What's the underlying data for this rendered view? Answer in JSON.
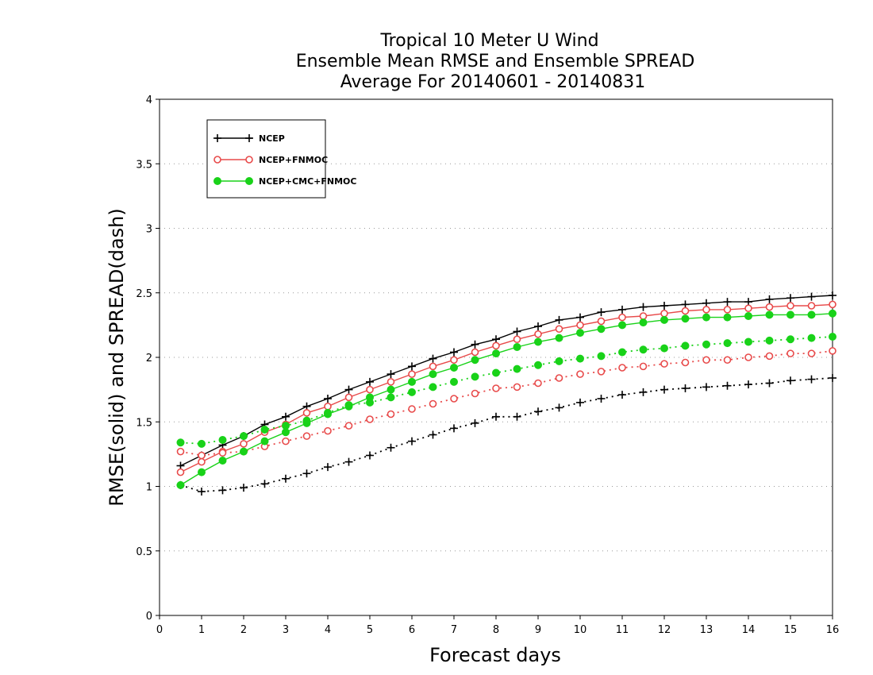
{
  "chart_data": {
    "type": "line",
    "title": [
      "Tropical 10 Meter U Wind",
      "Ensemble Mean RMSE and Ensemble SPREAD",
      "Average For 20140601 - 20140831"
    ],
    "xlabel": "Forecast days",
    "ylabel": "RMSE(solid) and SPREAD(dash)",
    "xlim": [
      0,
      16
    ],
    "ylim": [
      0,
      4
    ],
    "xticks": [
      "0",
      "1",
      "2",
      "3",
      "4",
      "5",
      "6",
      "7",
      "8",
      "9",
      "10",
      "11",
      "12",
      "13",
      "14",
      "15",
      "16"
    ],
    "yticks": [
      "0",
      "0.5",
      "1",
      "1.5",
      "2",
      "2.5",
      "3",
      "3.5",
      "4"
    ],
    "grid": "horizontal dotted",
    "legend_position": "top-left",
    "x": [
      0.5,
      1,
      1.5,
      2,
      2.5,
      3,
      3.5,
      4,
      4.5,
      5,
      5.5,
      6,
      6.5,
      7,
      7.5,
      8,
      8.5,
      9,
      9.5,
      10,
      10.5,
      11,
      11.5,
      12,
      12.5,
      13,
      13.5,
      14,
      14.5,
      15,
      15.5,
      16
    ],
    "series": [
      {
        "name": "NCEP",
        "color": "#000000",
        "marker": "plus",
        "rmse": [
          1.16,
          1.24,
          1.32,
          1.39,
          1.48,
          1.54,
          1.62,
          1.68,
          1.75,
          1.81,
          1.87,
          1.93,
          1.99,
          2.04,
          2.1,
          2.14,
          2.2,
          2.24,
          2.29,
          2.31,
          2.35,
          2.37,
          2.39,
          2.4,
          2.41,
          2.42,
          2.43,
          2.43,
          2.45,
          2.46,
          2.47,
          2.48
        ],
        "spread": [
          1.01,
          0.96,
          0.97,
          0.99,
          1.02,
          1.06,
          1.1,
          1.15,
          1.19,
          1.24,
          1.3,
          1.35,
          1.4,
          1.45,
          1.49,
          1.54,
          1.54,
          1.58,
          1.61,
          1.65,
          1.68,
          1.71,
          1.73,
          1.75,
          1.76,
          1.77,
          1.78,
          1.79,
          1.8,
          1.82,
          1.83,
          1.84
        ]
      },
      {
        "name": "NCEP+FNMOC",
        "color": "#e84a4a",
        "marker": "open-circle",
        "rmse": [
          1.11,
          1.19,
          1.27,
          1.33,
          1.42,
          1.48,
          1.57,
          1.62,
          1.69,
          1.75,
          1.81,
          1.87,
          1.93,
          1.98,
          2.04,
          2.09,
          2.14,
          2.18,
          2.22,
          2.25,
          2.28,
          2.31,
          2.32,
          2.34,
          2.36,
          2.37,
          2.37,
          2.38,
          2.39,
          2.4,
          2.4,
          2.41
        ],
        "spread": [
          1.27,
          1.24,
          1.26,
          1.27,
          1.31,
          1.35,
          1.39,
          1.43,
          1.47,
          1.52,
          1.56,
          1.6,
          1.64,
          1.68,
          1.72,
          1.76,
          1.77,
          1.8,
          1.84,
          1.87,
          1.89,
          1.92,
          1.93,
          1.95,
          1.96,
          1.98,
          1.98,
          2.0,
          2.01,
          2.03,
          2.03,
          2.05
        ]
      },
      {
        "name": "NCEP+CMC+FNMOC",
        "color": "#19d219",
        "marker": "filled-circle",
        "rmse": [
          1.01,
          1.11,
          1.2,
          1.27,
          1.35,
          1.42,
          1.49,
          1.56,
          1.62,
          1.69,
          1.75,
          1.81,
          1.87,
          1.92,
          1.98,
          2.03,
          2.08,
          2.12,
          2.15,
          2.19,
          2.22,
          2.25,
          2.27,
          2.29,
          2.3,
          2.31,
          2.31,
          2.32,
          2.33,
          2.33,
          2.33,
          2.34
        ],
        "spread": [
          1.34,
          1.33,
          1.36,
          1.39,
          1.44,
          1.47,
          1.51,
          1.57,
          1.63,
          1.65,
          1.69,
          1.73,
          1.77,
          1.81,
          1.85,
          1.88,
          1.91,
          1.94,
          1.97,
          1.99,
          2.01,
          2.04,
          2.06,
          2.07,
          2.09,
          2.1,
          2.11,
          2.12,
          2.13,
          2.14,
          2.15,
          2.16
        ]
      }
    ]
  }
}
